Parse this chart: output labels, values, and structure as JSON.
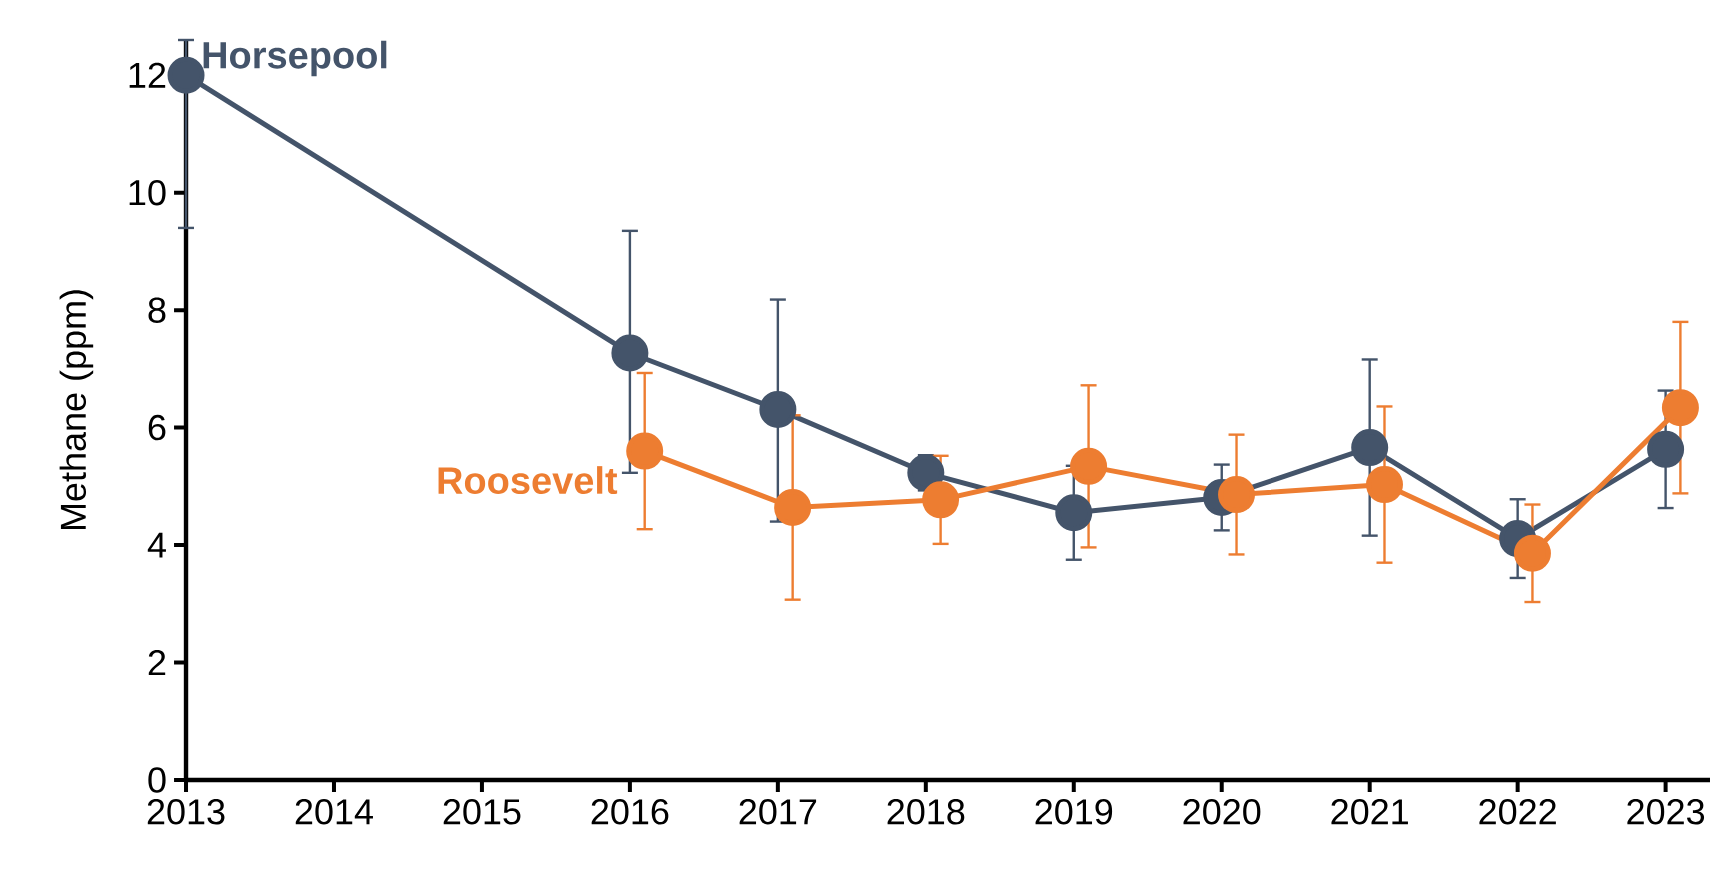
{
  "chart_data": {
    "type": "line",
    "ylabel": "Methane (ppm)",
    "xlim": [
      2013,
      2023.3
    ],
    "ylim": [
      0,
      12.6
    ],
    "xticks": [
      2013,
      2014,
      2015,
      2016,
      2017,
      2018,
      2019,
      2020,
      2021,
      2022,
      2023
    ],
    "yticks": [
      0,
      2,
      4,
      6,
      8,
      10,
      12
    ],
    "grid": false,
    "marker": "circle",
    "line_style": "solid",
    "series": [
      {
        "name": "Horsepool",
        "color": "#44546a",
        "x": [
          2013,
          2016,
          2017,
          2018,
          2019,
          2020,
          2021,
          2022,
          2023
        ],
        "values": [
          12.0,
          7.27,
          6.31,
          5.23,
          4.55,
          4.81,
          5.66,
          4.11,
          5.63
        ],
        "errors": [
          [
            9.4,
            12.6
          ],
          [
            5.23,
            9.35
          ],
          [
            4.4,
            8.18
          ],
          0.3,
          0.8,
          0.56,
          1.5,
          0.67,
          1.0
        ]
      },
      {
        "name": "Roosevelt",
        "color": "#ed7d31",
        "x": [
          2016.1,
          2017.1,
          2018.1,
          2019.1,
          2020.1,
          2021.1,
          2022.1,
          2023.1
        ],
        "values": [
          5.6,
          4.64,
          4.77,
          5.34,
          4.86,
          5.03,
          3.86,
          6.34
        ],
        "errors": [
          1.33,
          1.57,
          0.75,
          1.38,
          1.02,
          1.33,
          0.83,
          1.46
        ]
      }
    ]
  }
}
